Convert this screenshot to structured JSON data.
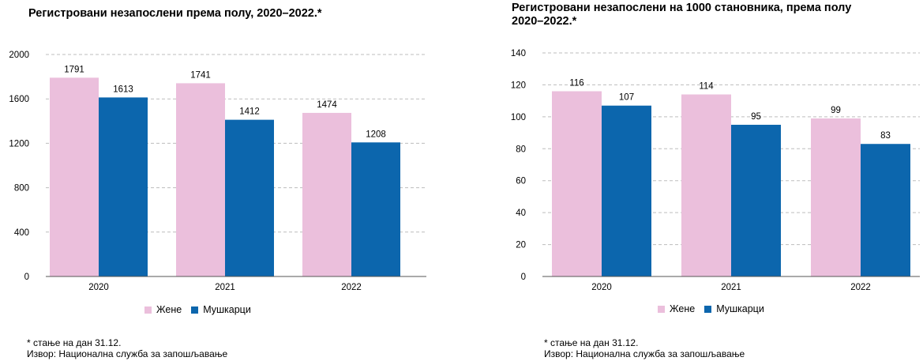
{
  "colors": {
    "women": "#ebbfdc",
    "men": "#0c66ad",
    "grid": "#bdbdbd",
    "axis": "#555555"
  },
  "chart_data": [
    {
      "type": "bar",
      "title": "Регистровани незапослени према полу, 2020–2022.*",
      "categories": [
        "2020",
        "2021",
        "2022"
      ],
      "series": [
        {
          "name": "Жене",
          "values": [
            1791,
            1741,
            1474
          ]
        },
        {
          "name": "Мушкарци",
          "values": [
            1613,
            1412,
            1208
          ]
        }
      ],
      "ylim": [
        0,
        2000
      ],
      "yticks": [
        0,
        400,
        800,
        1200,
        1600,
        2000
      ],
      "grid": true,
      "legend": "bottom-center"
    },
    {
      "type": "bar",
      "title": "Регистровани незапослени на 1000 становника, према полу\n2020–2022.*",
      "categories": [
        "2020",
        "2021",
        "2022"
      ],
      "series": [
        {
          "name": "Жене",
          "values": [
            116,
            114,
            99
          ]
        },
        {
          "name": "Мушкарци",
          "values": [
            107,
            95,
            83
          ]
        }
      ],
      "ylim": [
        0,
        140
      ],
      "yticks": [
        0,
        20,
        40,
        60,
        80,
        100,
        120,
        140
      ],
      "grid": true,
      "legend": "bottom-center"
    }
  ],
  "footnotes": {
    "note": "* стање на дан 31.12.",
    "source": "Извор: Национална служба за запошљавање"
  }
}
